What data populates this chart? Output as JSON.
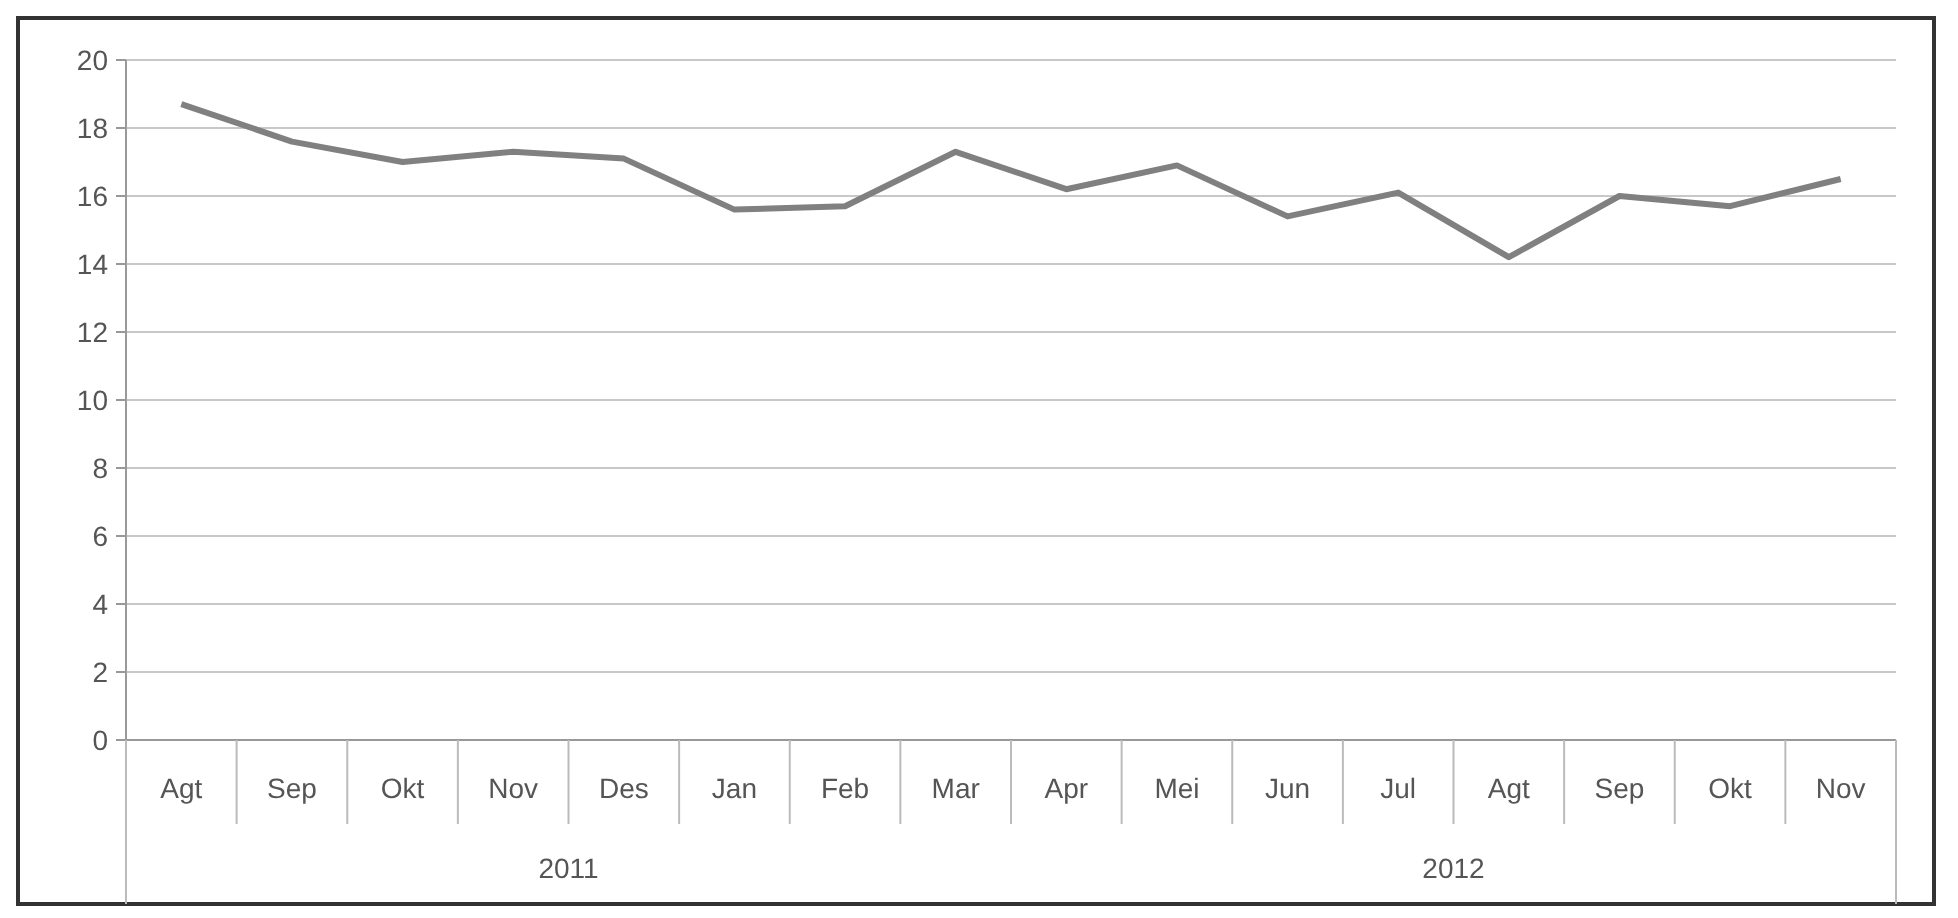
{
  "chart_data": {
    "type": "line",
    "categories": [
      "Agt",
      "Sep",
      "Okt",
      "Nov",
      "Des",
      "Jan",
      "Feb",
      "Mar",
      "Apr",
      "Mei",
      "Jun",
      "Jul",
      "Agt",
      "Sep",
      "Okt",
      "Nov"
    ],
    "series": [
      {
        "color": "#808080",
        "values": [
          18.7,
          17.6,
          17.0,
          17.3,
          17.1,
          15.6,
          15.7,
          17.3,
          16.2,
          16.9,
          15.4,
          16.1,
          14.2,
          16.0,
          15.7,
          16.5
        ]
      }
    ],
    "ylim": [
      0,
      20
    ],
    "yticks": [
      0,
      2,
      4,
      6,
      8,
      10,
      12,
      14,
      16,
      18,
      20
    ],
    "grid": "y",
    "marker": "none",
    "annotations": [
      "2011",
      "2012"
    ]
  }
}
